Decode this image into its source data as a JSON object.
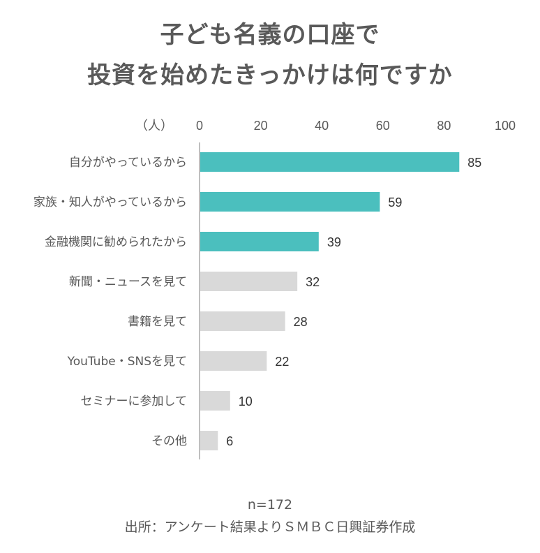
{
  "title_lines": [
    "子ども名義の口座で",
    "投資を始めたきっかけは何ですか"
  ],
  "unit_label": "（人）",
  "sample_note": "n=172",
  "source_note": "出所：アンケート結果よりＳＭＢＣ日興証券作成",
  "colors": {
    "highlight": "#4bbfbe",
    "muted": "#d9d9d9",
    "axis": "#bfbfbf",
    "text": "#595959"
  },
  "chart_data": {
    "type": "bar",
    "orientation": "horizontal",
    "title": "子ども名義の口座で投資を始めたきっかけは何ですか",
    "xlim": [
      0,
      100
    ],
    "xticks": [
      0,
      20,
      40,
      60,
      80,
      100
    ],
    "xlabel": "（人）",
    "categories": [
      "自分がやっているから",
      "家族・知人がやっているから",
      "金融機関に勧められたから",
      "新聞・ニュースを見て",
      "書籍を見て",
      "YouTube・SNSを見て",
      "セミナーに参加して",
      "その他"
    ],
    "values": [
      85,
      59,
      39,
      32,
      28,
      22,
      10,
      6
    ],
    "highlighted": [
      true,
      true,
      true,
      false,
      false,
      false,
      false,
      false
    ],
    "grid": false,
    "legend": "none"
  }
}
